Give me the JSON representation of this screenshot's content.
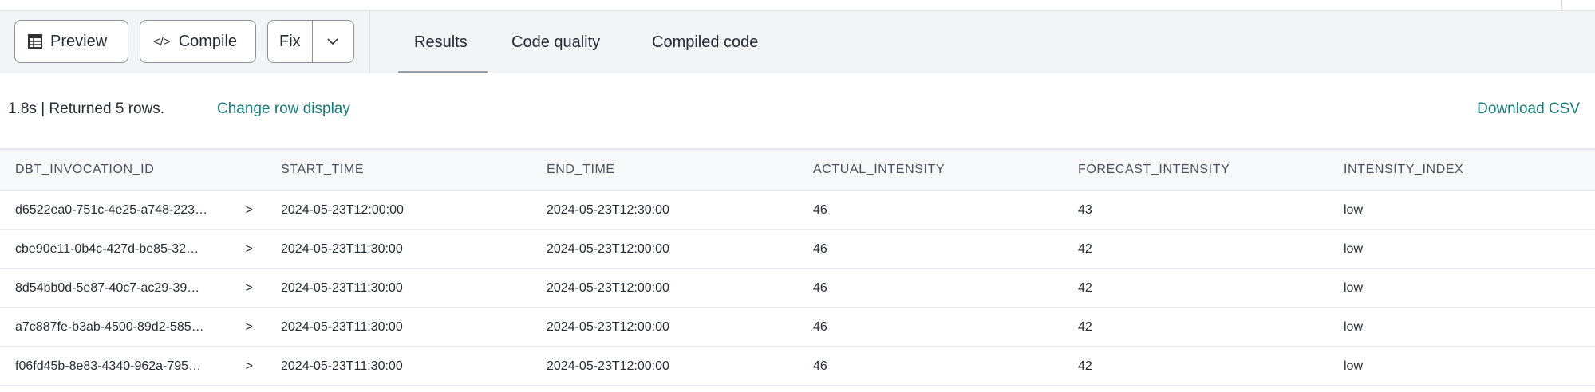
{
  "toolbar": {
    "preview_label": "Preview",
    "compile_label": "Compile",
    "fix_label": "Fix"
  },
  "tabs": [
    {
      "label": "Results",
      "active": true
    },
    {
      "label": "Code quality"
    },
    {
      "label": "Compiled code"
    }
  ],
  "status": {
    "summary": "1.8s | Returned 5 rows.",
    "change_row_display": "Change row display",
    "download_csv": "Download CSV"
  },
  "table": {
    "columns": [
      "DBT_INVOCATION_ID",
      "START_TIME",
      "END_TIME",
      "ACTUAL_INTENSITY",
      "FORECAST_INTENSITY",
      "INTENSITY_INDEX"
    ],
    "rows": [
      [
        "d6522ea0-751c-4e25-a748-223…",
        "2024-05-23T12:00:00",
        "2024-05-23T12:30:00",
        "46",
        "43",
        "low"
      ],
      [
        "cbe90e11-0b4c-427d-be85-32…",
        "2024-05-23T11:30:00",
        "2024-05-23T12:00:00",
        "46",
        "42",
        "low"
      ],
      [
        "8d54bb0d-5e87-40c7-ac29-39…",
        "2024-05-23T11:30:00",
        "2024-05-23T12:00:00",
        "46",
        "42",
        "low"
      ],
      [
        "a7c887fe-b3ab-4500-89d2-585…",
        "2024-05-23T11:30:00",
        "2024-05-23T12:00:00",
        "46",
        "42",
        "low"
      ],
      [
        "f06fd45b-8e83-4340-962a-795…",
        "2024-05-23T11:30:00",
        "2024-05-23T12:00:00",
        "46",
        "42",
        "low"
      ]
    ]
  },
  "colors": {
    "accent": "#147a78",
    "toolbar_bg": "#f3f4f6"
  }
}
